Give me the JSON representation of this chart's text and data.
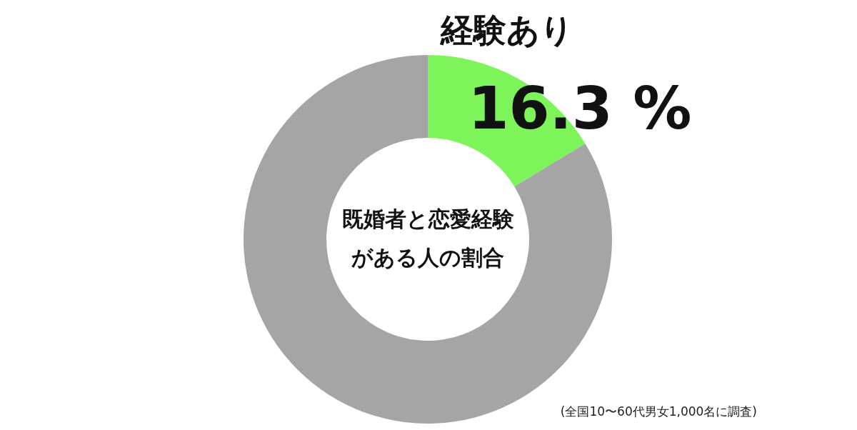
{
  "chart_data": {
    "type": "donut",
    "title": "既婚者と恋愛経験がある人の割合",
    "categories": [
      "経験あり",
      null
    ],
    "values": [
      16.3,
      83.7
    ],
    "colors": [
      "#7df45a",
      "#a5a5a5"
    ],
    "value_labels": [
      "16.3 %",
      null
    ],
    "annotations": [
      "(全国10〜60代男女1,000名に調査)"
    ]
  }
}
